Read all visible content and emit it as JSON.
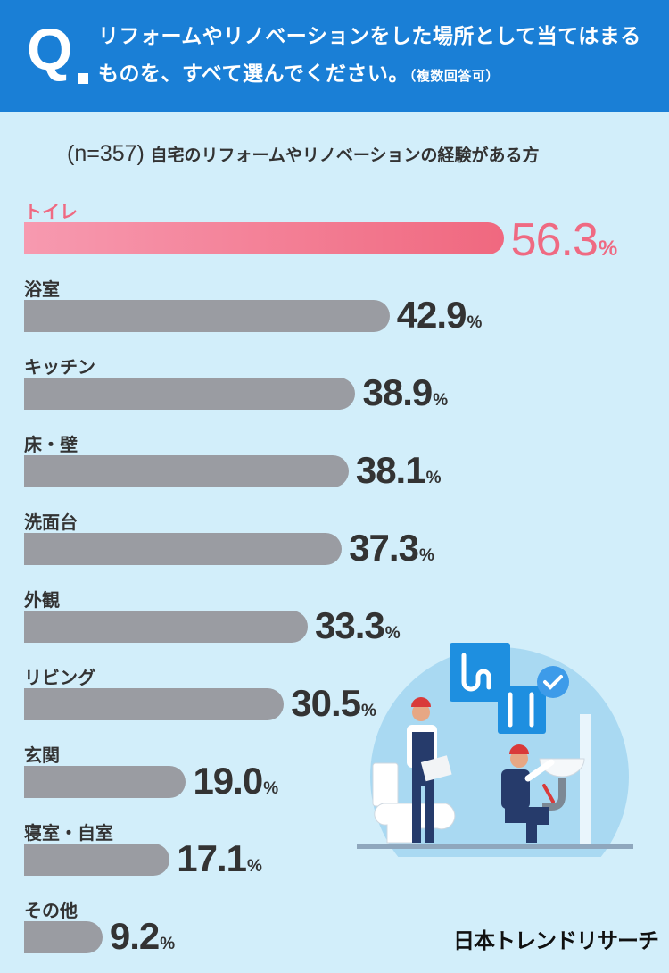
{
  "header": {
    "q_letter": "Q",
    "question": "リフォームやリノベーションをした場所として当てはまるものを、すべて選んでください。",
    "note": "（複数回答可）"
  },
  "subtitle": {
    "sample": "(n=357)",
    "text": "自宅のリフォームやリノベーションの経験がある方"
  },
  "chart_data": {
    "type": "bar",
    "orientation": "horizontal",
    "categories": [
      "トイレ",
      "浴室",
      "キッチン",
      "床・壁",
      "洗面台",
      "外観",
      "リビング",
      "玄関",
      "寝室・自室",
      "その他"
    ],
    "values": [
      56.3,
      42.9,
      38.9,
      38.1,
      37.3,
      33.3,
      30.5,
      19.0,
      17.1,
      9.2
    ],
    "unit": "%",
    "highlight_index": 0,
    "colors": {
      "highlight": "#f0687f",
      "bar": "#9a9ca2",
      "highlight_text": "#ef6a82"
    }
  },
  "brand": "日本トレンドリサーチ",
  "colors": {
    "header_bg": "#1a7fd6",
    "page_bg": "#d2eefa"
  },
  "illustration_icons": [
    "plumber-icon",
    "toilet-icon",
    "sink-icon",
    "pipe-icon",
    "wrench-icon",
    "check-icon"
  ]
}
